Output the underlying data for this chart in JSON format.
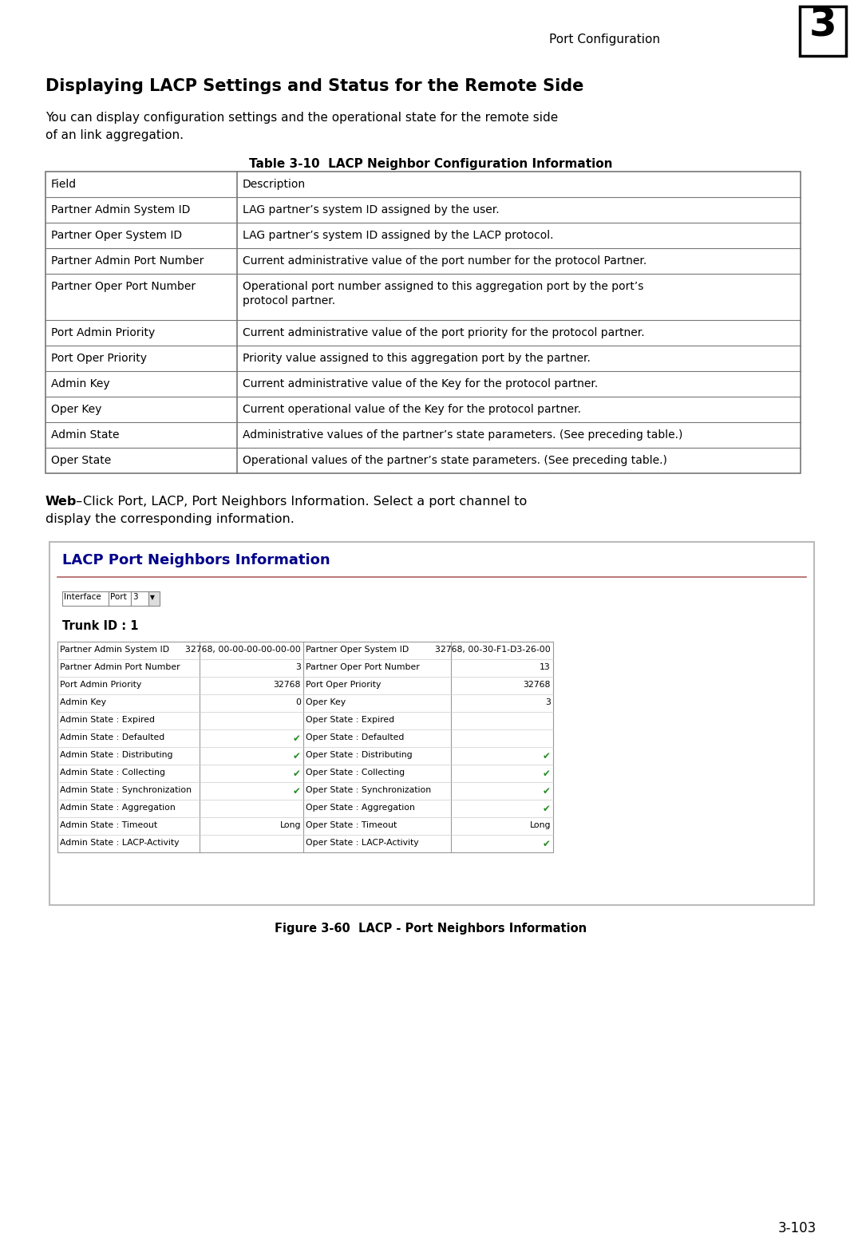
{
  "page_title": "Port Configuration",
  "page_number": "3",
  "page_footer": "3-103",
  "section_title": "Displaying LACP Settings and Status for the Remote Side",
  "intro_line1": "You can display configuration settings and the operational state for the remote side",
  "intro_line2": "of an link aggregation.",
  "table_title": "Table 3-10  LACP Neighbor Configuration Information",
  "table_rows": [
    [
      "Field",
      "Description"
    ],
    [
      "Partner Admin System ID",
      "LAG partner’s system ID assigned by the user."
    ],
    [
      "Partner Oper System ID",
      "LAG partner’s system ID assigned by the LACP protocol."
    ],
    [
      "Partner Admin Port Number",
      "Current administrative value of the port number for the protocol Partner."
    ],
    [
      "Partner Oper Port Number",
      "Operational port number assigned to this aggregation port by the port’s\nprotocol partner."
    ],
    [
      "Port Admin Priority",
      "Current administrative value of the port priority for the protocol partner."
    ],
    [
      "Port Oper Priority",
      "Priority value assigned to this aggregation port by the partner."
    ],
    [
      "Admin Key",
      "Current administrative value of the Key for the protocol partner."
    ],
    [
      "Oper Key",
      "Current operational value of the Key for the protocol partner."
    ],
    [
      "Admin State",
      "Administrative values of the partner’s state parameters. (See preceding table.)"
    ],
    [
      "Oper State",
      "Operational values of the partner’s state parameters. (See preceding table.)"
    ]
  ],
  "web_bold": "Web",
  "web_dash": " – ",
  "web_rest_line1": "Click Port, LACP, Port Neighbors Information. Select a port channel to",
  "web_rest_line2": "display the corresponding information.",
  "ui_title": "LACP Port Neighbors Information",
  "ui_trunk_id": "Trunk ID : 1",
  "figure_caption": "Figure 3-60  LACP - Port Neighbors Information",
  "ui_table_left_labels": [
    "Partner Admin System ID",
    "Partner Admin Port Number",
    "Port Admin Priority",
    "Admin Key",
    "Admin State : Expired",
    "Admin State : Defaulted",
    "Admin State : Distributing",
    "Admin State : Collecting",
    "Admin State : Synchronization",
    "Admin State : Aggregation",
    "Admin State : Timeout",
    "Admin State : LACP-Activity"
  ],
  "ui_table_left_vals": [
    "32768, 00-00-00-00-00-00",
    "3",
    "32768",
    "0",
    "",
    "✔",
    "✔",
    "✔",
    "✔",
    "",
    "Long",
    ""
  ],
  "ui_table_right_labels": [
    "Partner Oper System ID",
    "Partner Oper Port Number",
    "Port Oper Priority",
    "Oper Key",
    "Oper State : Expired",
    "Oper State : Defaulted",
    "Oper State : Distributing",
    "Oper State : Collecting",
    "Oper State : Synchronization",
    "Oper State : Aggregation",
    "Oper State : Timeout",
    "Oper State : LACP-Activity"
  ],
  "ui_table_right_vals": [
    "32768, 00-30-F1-D3-26-00",
    "13",
    "32768",
    "3",
    "",
    "",
    "✔",
    "✔",
    "✔",
    "✔",
    "Long",
    "✔"
  ],
  "check_color": "#228B22",
  "bg_color": "#ffffff",
  "table_border_color": "#777777",
  "ui_box_border": "#aaaaaa",
  "ui_title_color": "#00008B",
  "ui_line_color": "#b06060"
}
